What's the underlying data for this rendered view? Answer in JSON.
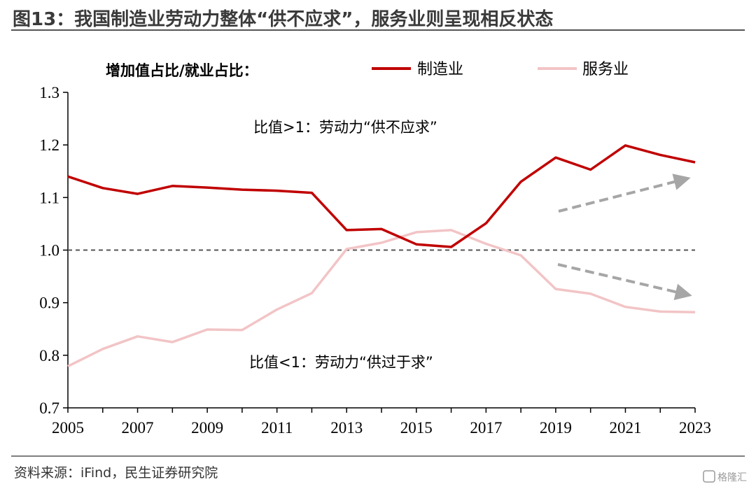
{
  "header": {
    "title": "图13：我国制造业劳动力整体“供不应求”，服务业则呈现相反状态"
  },
  "footer": {
    "source": "资料来源：iFind，民生证券研究院",
    "watermark": "格隆汇"
  },
  "colors": {
    "manufacturing": "#c00000",
    "services": "#f2c4c6",
    "reference_line": "#555555",
    "arrow": "#a6a6a6",
    "rule": "#555555"
  },
  "chart_data": {
    "type": "line",
    "legend_prefix": "增加值占比/就业占比：",
    "x": [
      2005,
      2006,
      2007,
      2008,
      2009,
      2010,
      2011,
      2012,
      2013,
      2014,
      2015,
      2016,
      2017,
      2018,
      2019,
      2020,
      2021,
      2022,
      2023
    ],
    "x_ticks": [
      "2005",
      "2007",
      "2009",
      "2011",
      "2013",
      "2015",
      "2017",
      "2019",
      "2021",
      "2023"
    ],
    "y_ticks": [
      "0.7",
      "0.8",
      "0.9",
      "1.0",
      "1.1",
      "1.2",
      "1.3"
    ],
    "ylim": [
      0.7,
      1.3
    ],
    "xlim": [
      2005,
      2023
    ],
    "reference_line": 1.0,
    "series": [
      {
        "name": "制造业",
        "values": [
          1.14,
          1.118,
          1.107,
          1.122,
          1.119,
          1.115,
          1.113,
          1.109,
          1.038,
          1.04,
          1.011,
          1.006,
          1.051,
          1.13,
          1.176,
          1.153,
          1.199,
          1.181,
          1.167
        ]
      },
      {
        "name": "服务业",
        "values": [
          0.779,
          0.812,
          0.836,
          0.825,
          0.849,
          0.848,
          0.887,
          0.918,
          1.002,
          1.014,
          1.034,
          1.038,
          1.012,
          0.99,
          0.926,
          0.917,
          0.892,
          0.883,
          0.882
        ]
      }
    ],
    "annotations": [
      "比值>1：劳动力“供不应求”",
      "比值<1：劳动力“供过于求”"
    ],
    "legend_position": "top",
    "grid": false
  }
}
